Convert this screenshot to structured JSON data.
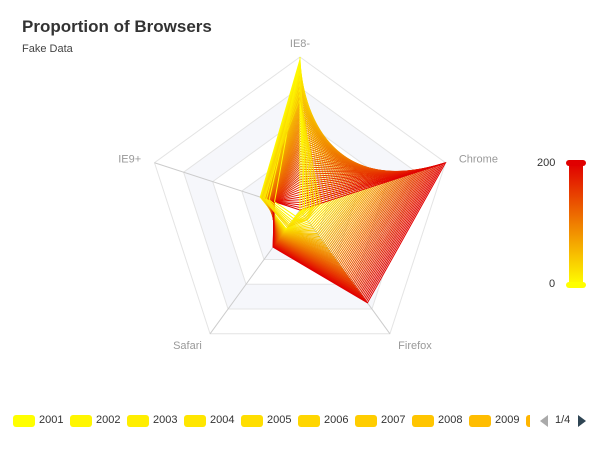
{
  "title": "Proportion of Browsers",
  "subtitle": "Fake Data",
  "visual_map": {
    "max_label": "200",
    "min_label": "0",
    "color_low": "#ffff00",
    "color_high": "#e00000"
  },
  "legend": {
    "page_text": "1/4"
  },
  "chart_data": {
    "type": "radar",
    "indicators": [
      "IE8-",
      "Chrome",
      "Firefox",
      "Safari",
      "IE9+"
    ],
    "max": 400,
    "series": [
      {
        "name": "2001",
        "values": [
          400,
          0,
          0,
          0,
          0
        ]
      },
      {
        "name": "2002",
        "values": [
          393,
          8,
          3,
          20,
          70
        ]
      },
      {
        "name": "2003",
        "values": [
          378,
          13,
          5,
          28,
          85
        ]
      },
      {
        "name": "2004",
        "values": [
          365,
          19,
          8,
          35,
          92
        ]
      },
      {
        "name": "2005",
        "values": [
          350,
          26,
          11,
          40,
          97
        ]
      },
      {
        "name": "2006",
        "values": [
          336,
          33,
          15,
          45,
          100
        ]
      },
      {
        "name": "2007",
        "values": [
          321,
          40,
          20,
          49,
          102
        ]
      },
      {
        "name": "2008",
        "values": [
          307,
          47,
          25,
          52,
          103
        ]
      },
      {
        "name": "2009",
        "values": [
          292,
          55,
          30,
          56,
          104
        ]
      }
    ]
  }
}
